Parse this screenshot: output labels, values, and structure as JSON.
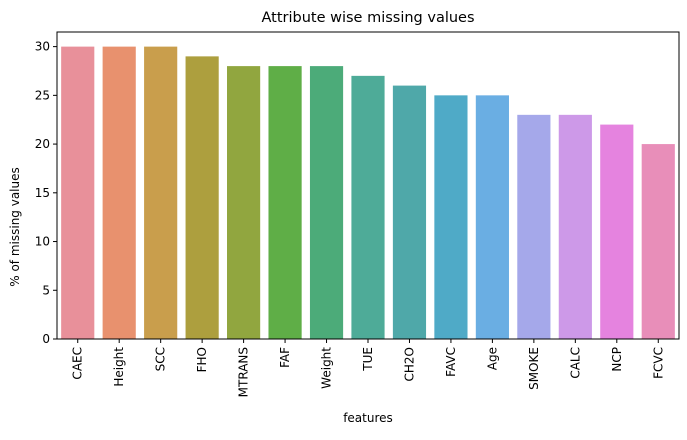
{
  "chart_data": {
    "type": "bar",
    "title": "Attribute wise missing values",
    "xlabel": "features",
    "ylabel": "% of missing values",
    "ylim": [
      0,
      31.5
    ],
    "yticks": [
      0,
      5,
      10,
      15,
      20,
      25,
      30
    ],
    "grid": false,
    "categories": [
      "CAEC",
      "Height",
      "SCC",
      "FHO",
      "MTRANS",
      "FAF",
      "Weight",
      "TUE",
      "CH2O",
      "FAVC",
      "Age",
      "SMOKE",
      "CALC",
      "NCP",
      "FCVC"
    ],
    "values": [
      30,
      30,
      30,
      29,
      28,
      28,
      28,
      27,
      26,
      25,
      25,
      23,
      23,
      22,
      20
    ],
    "colors": [
      "#e8909a",
      "#e8916e",
      "#c99e4c",
      "#ad9f3e",
      "#91a63f",
      "#5fae47",
      "#4cab79",
      "#4eab98",
      "#4fa8a9",
      "#4faac7",
      "#6aaee3",
      "#a5a8ea",
      "#cd99e8",
      "#e583df",
      "#e88eb9"
    ]
  }
}
